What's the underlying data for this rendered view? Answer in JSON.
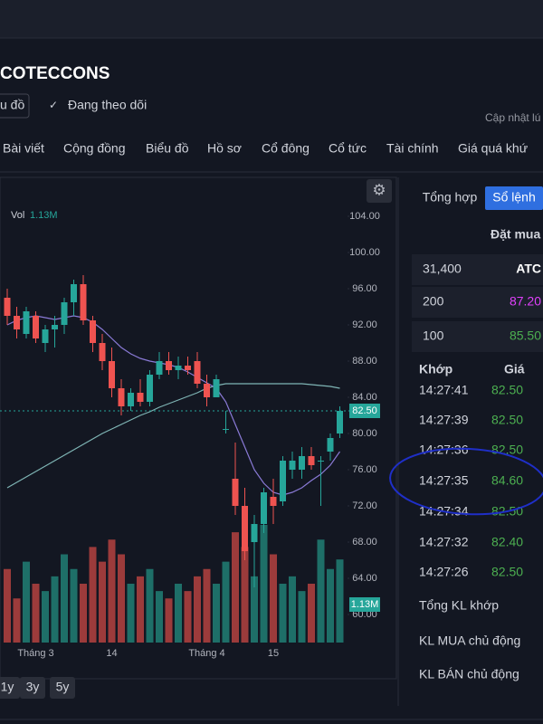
{
  "header": {
    "title": "COTECCONS",
    "chart_button": "u đồ",
    "follow_button": "Đang theo dõi",
    "updated": "Cập nhật lú"
  },
  "tabs": [
    "Bài viết",
    "Cộng đồng",
    "Biểu đồ",
    "Hồ sơ",
    "Cổ đông",
    "Cổ tức",
    "Tài chính",
    "Giá quá khứ"
  ],
  "chart": {
    "type": "candlestick",
    "ylim": [
      57,
      108
    ],
    "yticks": [
      {
        "value": 104,
        "label": "104.00"
      },
      {
        "value": 100,
        "label": "100.00"
      },
      {
        "value": 96,
        "label": "96.00"
      },
      {
        "value": 92,
        "label": "92.00"
      },
      {
        "value": 88,
        "label": "88.00"
      },
      {
        "value": 84,
        "label": "84.00"
      },
      {
        "value": 80,
        "label": "80.00"
      },
      {
        "value": 76,
        "label": "76.00"
      },
      {
        "value": 72,
        "label": "72.00"
      },
      {
        "value": 68,
        "label": "68.00"
      },
      {
        "value": 64,
        "label": "64.00"
      },
      {
        "value": 60,
        "label": "60.00"
      }
    ],
    "categories": [
      null,
      null,
      null,
      "Tháng 3",
      null,
      null,
      null,
      null,
      null,
      null,
      null,
      "14",
      null,
      null,
      null,
      null,
      null,
      null,
      null,
      null,
      null,
      "Tháng 4",
      null,
      null,
      null,
      null,
      null,
      null,
      "15",
      null,
      null,
      null,
      null,
      null,
      null,
      null
    ],
    "candles": [
      [
        95,
        96,
        92,
        93
      ],
      [
        93,
        94,
        90.5,
        91.5
      ],
      [
        91,
        94,
        90.5,
        93.5
      ],
      [
        93,
        93.5,
        90,
        90.5
      ],
      [
        90,
        92,
        89,
        91.5
      ],
      [
        91.5,
        93,
        89.5,
        92
      ],
      [
        92,
        95,
        91,
        94.5
      ],
      [
        94.5,
        97,
        93,
        96.5
      ],
      [
        96.5,
        97.5,
        92,
        92.5
      ],
      [
        92.5,
        93,
        89,
        90
      ],
      [
        90,
        91,
        87,
        88
      ],
      [
        88,
        89.5,
        84,
        85
      ],
      [
        85,
        86,
        82,
        83
      ],
      [
        83,
        85,
        82.5,
        84.5
      ],
      [
        84.5,
        86,
        83,
        83.5
      ],
      [
        83.5,
        87,
        83,
        86.5
      ],
      [
        86.5,
        89,
        86,
        88
      ],
      [
        88,
        89,
        86.5,
        87
      ],
      [
        87,
        88.5,
        86,
        87.5
      ],
      [
        87.5,
        88.5,
        86.5,
        87
      ],
      [
        88,
        89,
        85,
        85.5
      ],
      [
        85.5,
        86.5,
        83,
        84
      ],
      [
        84,
        86.5,
        84,
        86
      ],
      [
        80.5,
        82.5,
        80,
        80.5
      ],
      [
        75,
        79,
        71,
        72
      ],
      [
        72,
        74,
        66,
        67
      ],
      [
        68,
        71,
        63,
        70
      ],
      [
        70,
        74,
        69,
        73.5
      ],
      [
        73,
        75,
        70,
        72
      ],
      [
        72.5,
        77.5,
        72,
        77
      ],
      [
        76,
        78,
        75,
        77
      ],
      [
        76,
        78.5,
        75,
        77.5
      ],
      [
        77.5,
        78.5,
        76,
        76.5
      ],
      [
        77,
        77.5,
        72,
        77
      ],
      [
        78,
        80,
        77,
        79.5
      ],
      [
        80,
        83,
        79.5,
        82.5
      ]
    ],
    "volumes": [
      1.0,
      0.6,
      1.1,
      0.8,
      0.7,
      0.9,
      1.2,
      1.0,
      0.8,
      1.3,
      1.1,
      1.4,
      1.2,
      0.8,
      0.9,
      1.0,
      0.7,
      0.6,
      0.8,
      0.7,
      0.9,
      1.0,
      0.8,
      1.1,
      1.5,
      1.3,
      0.9,
      1.6,
      1.2,
      0.8,
      0.9,
      0.7,
      0.8,
      1.4,
      1.0,
      1.13
    ],
    "volume_ylim": [
      0,
      1.6
    ],
    "ma_short": [
      92,
      92.5,
      92.8,
      93,
      92.8,
      92.6,
      92.8,
      93,
      92.8,
      92.3,
      91.5,
      90.5,
      89.5,
      88.8,
      88.3,
      88,
      87.8,
      87.6,
      87.3,
      86.8,
      86.2,
      85.6,
      85,
      83.5,
      81,
      78.5,
      76,
      74.5,
      73.5,
      73.2,
      73.5,
      74,
      74.8,
      75.5,
      76.5,
      78
    ],
    "ma_long": [
      74,
      74.6,
      75.2,
      75.8,
      76.4,
      77,
      77.6,
      78.2,
      78.8,
      79.4,
      80,
      80.5,
      81,
      81.5,
      82,
      82.4,
      82.9,
      83.3,
      83.7,
      84.1,
      84.5,
      85,
      85.3,
      85.5,
      85.5,
      85.5,
      85.5,
      85.5,
      85.5,
      85.5,
      85.5,
      85.5,
      85.4,
      85.3,
      85.2,
      85
    ],
    "vol_label": "Vol",
    "vol_value": {
      "value": 1.13,
      "label": "1.13M"
    },
    "last_price": {
      "value": 82.5,
      "label": "82.50"
    },
    "ranges": [
      "1y",
      "3y",
      "5y"
    ]
  },
  "orderbook": {
    "tabs": [
      "Tổng hợp",
      "Sổ lệnh"
    ],
    "bid_header": "Đặt mua",
    "bids": [
      [
        "31,400",
        "ATC"
      ],
      [
        "200",
        "87.20"
      ],
      [
        "100",
        "85.50"
      ]
    ],
    "trade_header": [
      "Khớp",
      "Giá"
    ],
    "trades": [
      [
        "14:27:41",
        "82.50"
      ],
      [
        "14:27:39",
        "82.50"
      ],
      [
        "14:27:36",
        "82.50"
      ],
      [
        "14:27:35",
        "84.60"
      ],
      [
        "14:27:34",
        "82.50"
      ],
      [
        "14:27:32",
        "82.40"
      ],
      [
        "14:27:26",
        "82.50"
      ]
    ],
    "summary": [
      "Tổng KL khớp",
      "KL MUA chủ động",
      "KL BÁN chủ động"
    ]
  }
}
